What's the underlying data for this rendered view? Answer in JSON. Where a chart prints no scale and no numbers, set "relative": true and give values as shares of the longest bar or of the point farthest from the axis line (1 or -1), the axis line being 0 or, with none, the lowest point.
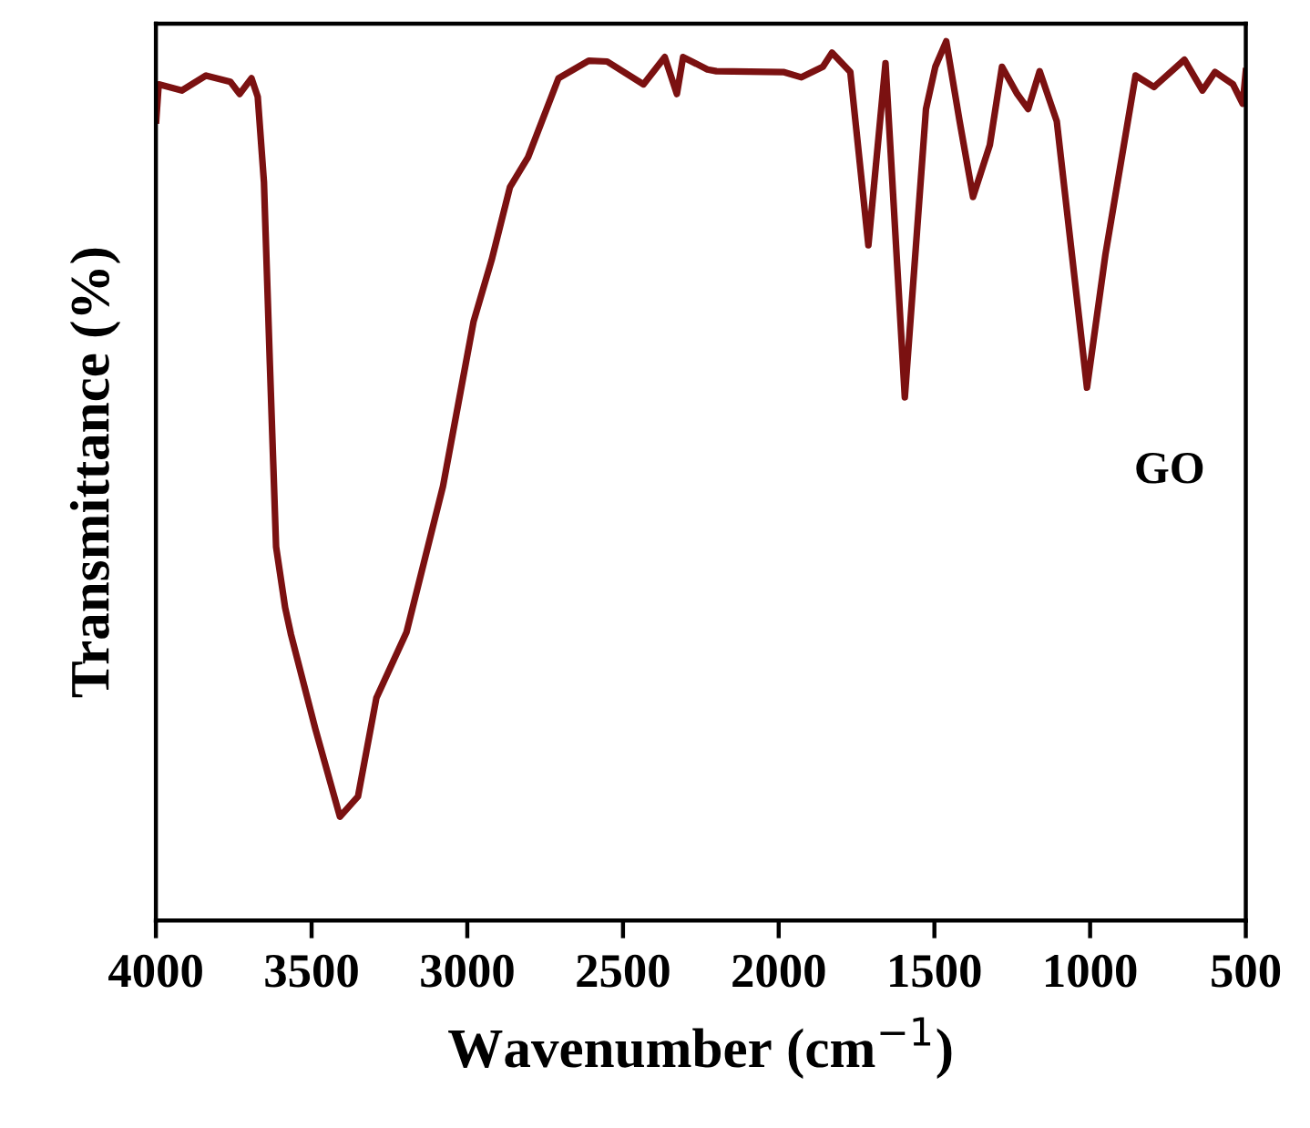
{
  "chart_data": {
    "type": "line",
    "relative": true,
    "xlabel": "Wavenumber (cm$^{−1}$)",
    "ylabel": "Transmittance (%)",
    "xlim": [
      4000,
      500
    ],
    "xticks": [
      4000,
      3500,
      3000,
      2500,
      2000,
      1500,
      1000,
      500
    ],
    "grid": false,
    "legend": false,
    "marker": "none",
    "line_style": "solid",
    "series": [
      {
        "name": "GO",
        "color": "#7b1111",
        "x": [
          3999,
          3991,
          3917,
          3839,
          3761,
          3731,
          3693,
          3673,
          3653,
          3634,
          3614,
          3585,
          3566,
          3488,
          3409,
          3351,
          3292,
          3195,
          3078,
          2980,
          2922,
          2863,
          2805,
          2707,
          2610,
          2551,
          2434,
          2366,
          2327,
          2307,
          2229,
          2200,
          1985,
          1927,
          1858,
          1829,
          1770,
          1712,
          1657,
          1595,
          1527,
          1497,
          1462,
          1419,
          1376,
          1322,
          1283,
          1234,
          1199,
          1162,
          1107,
          1010,
          951,
          854,
          795,
          697,
          639,
          599,
          541,
          510,
          500
        ],
        "values": [
          0.91,
          0.951,
          0.944,
          0.961,
          0.954,
          0.94,
          0.958,
          0.937,
          0.84,
          0.633,
          0.425,
          0.356,
          0.325,
          0.218,
          0.118,
          0.141,
          0.253,
          0.328,
          0.494,
          0.681,
          0.751,
          0.834,
          0.868,
          0.958,
          0.978,
          0.977,
          0.951,
          0.982,
          0.94,
          0.982,
          0.968,
          0.966,
          0.965,
          0.959,
          0.971,
          0.987,
          0.965,
          0.768,
          0.975,
          0.595,
          0.923,
          0.971,
          1.0,
          0.909,
          0.823,
          0.882,
          0.971,
          0.94,
          0.923,
          0.966,
          0.909,
          0.606,
          0.757,
          0.961,
          0.948,
          0.979,
          0.944,
          0.965,
          0.951,
          0.929,
          0.966
        ]
      }
    ]
  }
}
